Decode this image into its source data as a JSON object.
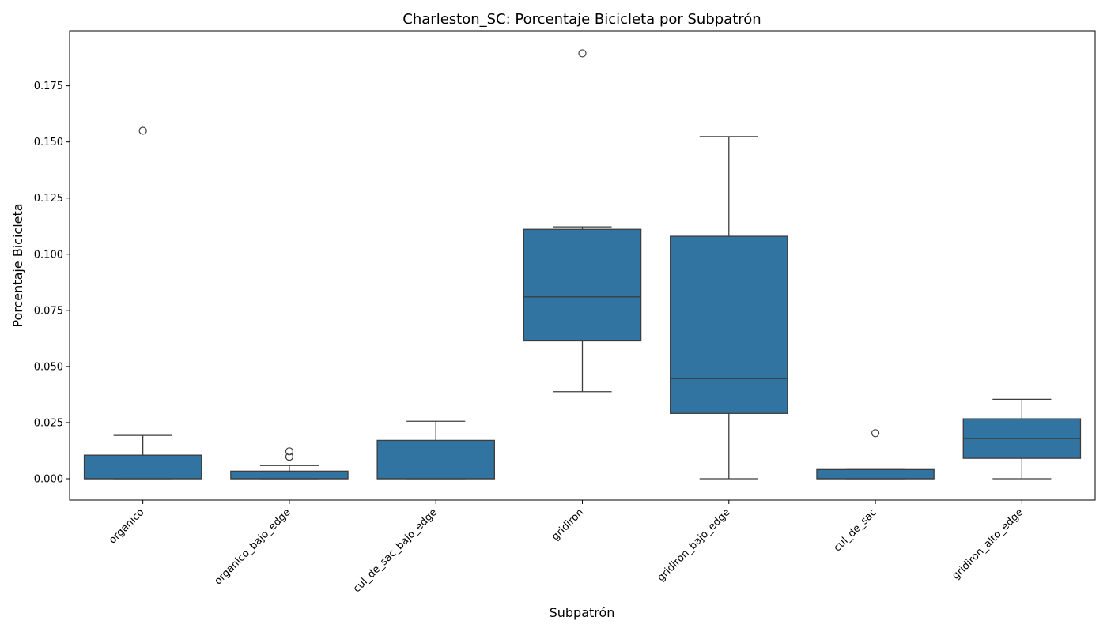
{
  "chart_data": {
    "type": "box",
    "title": "Charleston_SC: Porcentaje Bicicleta por Subpatrón",
    "xlabel": "Subpatrón",
    "ylabel": "Porcentaje Bicicleta",
    "ylim": [
      -0.0095,
      0.1995
    ],
    "yticks": [
      "0.000",
      "0.025",
      "0.050",
      "0.075",
      "0.100",
      "0.125",
      "0.150",
      "0.175"
    ],
    "ytick_values": [
      0,
      0.025,
      0.05,
      0.075,
      0.1,
      0.125,
      0.15,
      0.175
    ],
    "grid": false,
    "box_color": "#3274a1",
    "edge_color": "#3d3d3d",
    "categories": [
      "organico",
      "organico_bajo_edge",
      "cul_de_sac_bajo_edge",
      "gridiron",
      "gridiron_bajo_edge",
      "cul_de_sac",
      "gridiron_alto_edge"
    ],
    "boxes": [
      {
        "category": "organico",
        "whisker_low": 0.0,
        "q1": 0.0,
        "median": 0.0,
        "q3": 0.0105,
        "whisker_high": 0.0193,
        "outliers": [
          0.155
        ]
      },
      {
        "category": "organico_bajo_edge",
        "whisker_low": 0.0,
        "q1": 0.0,
        "median": 0.0,
        "q3": 0.0034,
        "whisker_high": 0.0059,
        "outliers": [
          0.0122,
          0.0098
        ]
      },
      {
        "category": "cul_de_sac_bajo_edge",
        "whisker_low": 0.0,
        "q1": 0.0,
        "median": 0.0,
        "q3": 0.0171,
        "whisker_high": 0.0256,
        "outliers": []
      },
      {
        "category": "gridiron",
        "whisker_low": 0.0388,
        "q1": 0.0614,
        "median": 0.081,
        "q3": 0.1111,
        "whisker_high": 0.1122,
        "outliers": [
          0.1895
        ]
      },
      {
        "category": "gridiron_bajo_edge",
        "whisker_low": 0.0,
        "q1": 0.0291,
        "median": 0.0446,
        "q3": 0.108,
        "whisker_high": 0.1524,
        "outliers": []
      },
      {
        "category": "cul_de_sac",
        "whisker_low": 0.0,
        "q1": 0.0,
        "median": 0.0,
        "q3": 0.0041,
        "whisker_high": 0.0041,
        "outliers": [
          0.0203
        ]
      },
      {
        "category": "gridiron_alto_edge",
        "whisker_low": 0.0,
        "q1": 0.0091,
        "median": 0.0179,
        "q3": 0.0267,
        "whisker_high": 0.0354,
        "outliers": []
      }
    ]
  }
}
